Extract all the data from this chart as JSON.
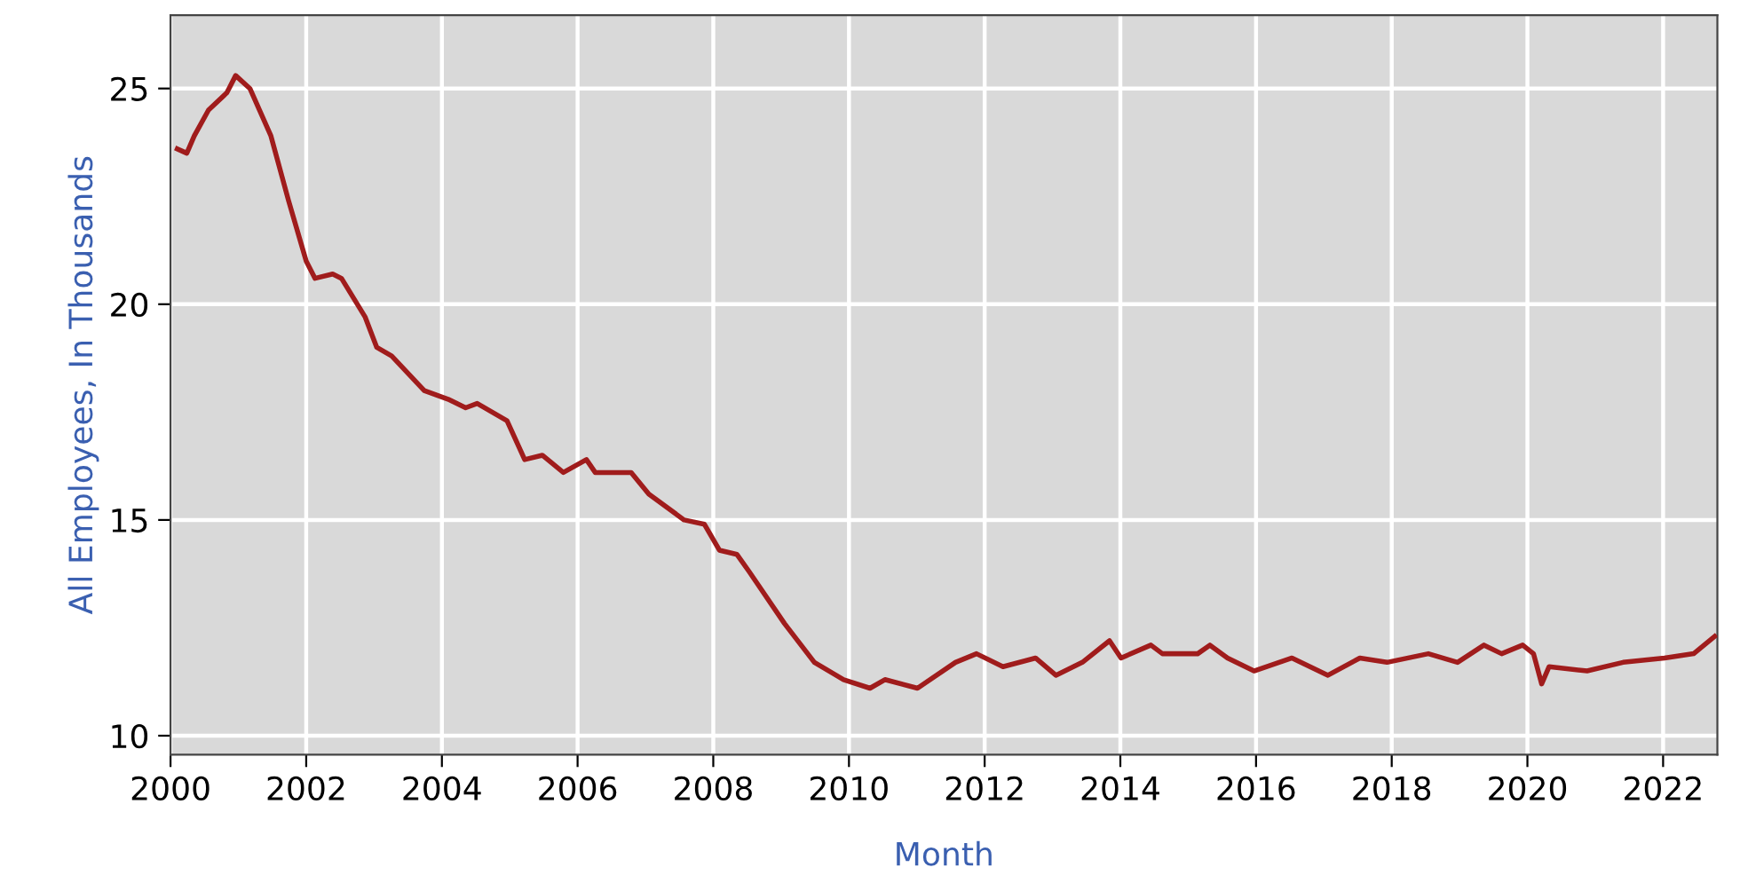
{
  "chart_data": {
    "type": "line",
    "xlabel": "Month",
    "ylabel": "All Employees, In Thousands",
    "x": [
      2000.1,
      2000.24,
      2000.35,
      2000.56,
      2000.83,
      2000.96,
      2001.17,
      2001.48,
      2001.74,
      2002.0,
      2002.13,
      2002.39,
      2002.52,
      2002.87,
      2003.04,
      2003.26,
      2003.74,
      2004.09,
      2004.35,
      2004.52,
      2004.96,
      2005.22,
      2005.48,
      2005.79,
      2006.13,
      2006.26,
      2006.79,
      2007.05,
      2007.57,
      2007.87,
      2008.09,
      2008.35,
      2008.53,
      2009.05,
      2009.49,
      2009.92,
      2010.31,
      2010.53,
      2011.01,
      2011.57,
      2011.88,
      2012.27,
      2012.75,
      2013.05,
      2013.44,
      2013.84,
      2014.01,
      2014.45,
      2014.62,
      2015.14,
      2015.32,
      2015.58,
      2015.97,
      2016.53,
      2017.06,
      2017.53,
      2017.93,
      2018.54,
      2018.97,
      2019.36,
      2019.62,
      2019.93,
      2020.09,
      2020.21,
      2020.32,
      2020.88,
      2021.41,
      2022.02,
      2022.45,
      2022.76
    ],
    "series": [
      {
        "color": "#a01c1c",
        "values": [
          23.6,
          23.5,
          23.9,
          24.5,
          24.9,
          25.3,
          25.0,
          23.9,
          22.4,
          21.0,
          20.6,
          20.7,
          20.6,
          19.7,
          19.0,
          18.8,
          18.0,
          17.8,
          17.6,
          17.7,
          17.3,
          16.4,
          16.5,
          16.1,
          16.4,
          16.1,
          16.1,
          15.6,
          15.0,
          14.9,
          14.3,
          14.2,
          13.8,
          12.6,
          11.7,
          11.3,
          11.1,
          11.3,
          11.1,
          11.7,
          11.9,
          11.6,
          11.8,
          11.4,
          11.7,
          12.2,
          11.8,
          12.1,
          11.9,
          11.9,
          12.1,
          11.8,
          11.5,
          11.8,
          11.4,
          11.8,
          11.7,
          11.9,
          11.7,
          12.1,
          11.9,
          12.1,
          11.9,
          11.2,
          11.6,
          11.5,
          11.7,
          11.8,
          11.9,
          12.3
        ]
      }
    ],
    "xlim": [
      2000,
      2022.8
    ],
    "ylim": [
      9.56,
      26.7
    ],
    "xticks": [
      2000,
      2002,
      2004,
      2006,
      2008,
      2010,
      2012,
      2014,
      2016,
      2018,
      2020,
      2022
    ],
    "yticks": [
      10,
      15,
      20,
      25
    ],
    "grid": true,
    "legend": false,
    "marker": "none",
    "line_style": "solid"
  }
}
